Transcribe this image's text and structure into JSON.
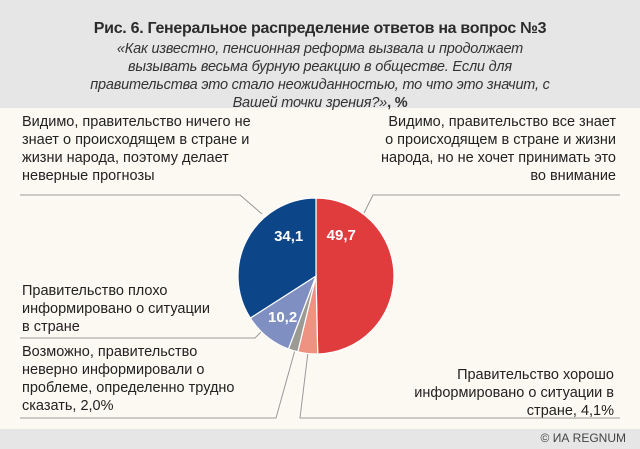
{
  "chart_data": {
    "type": "pie",
    "title": "Рис. 6. Генеральное распределение ответов на вопрос №3",
    "subtitle": "«Как известно, пенсионная реформа вызвала и продолжает вызывать весьма бурную реакцию в обществе. Если для правительства это стало неожиданностью, то что это значит, с Вашей точки зрения?»",
    "unit": ", %",
    "slices": [
      {
        "label": "Видимо, правительство все знает о происходящем в стране и жизни народа, но не хочет принимать это во внимание",
        "value": 49.7,
        "data_label": "49,7",
        "color": "#e03c3d"
      },
      {
        "label": "Правительство хорошо информировано о ситуации в стране, 4,1%",
        "value": 4.1,
        "data_label": "",
        "color": "#ee9282"
      },
      {
        "label": "Возможно, правительство неверно информировали о проблеме, определенно трудно сказать, 2,0%",
        "value": 2.0,
        "data_label": "",
        "color": "#9b9a93"
      },
      {
        "label": "Правительство плохо информировано о ситуации в стране",
        "value": 10.2,
        "data_label": "10,2",
        "color": "#7f8fc1"
      },
      {
        "label": "Видимо, правительство ничего не знает о происходящем в стране и жизни народа, поэтому делает неверные прогнозы",
        "value": 34.1,
        "data_label": "34,1",
        "color": "#0d4589"
      }
    ]
  },
  "footer": {
    "copyright": "© ИА REGNUM"
  }
}
